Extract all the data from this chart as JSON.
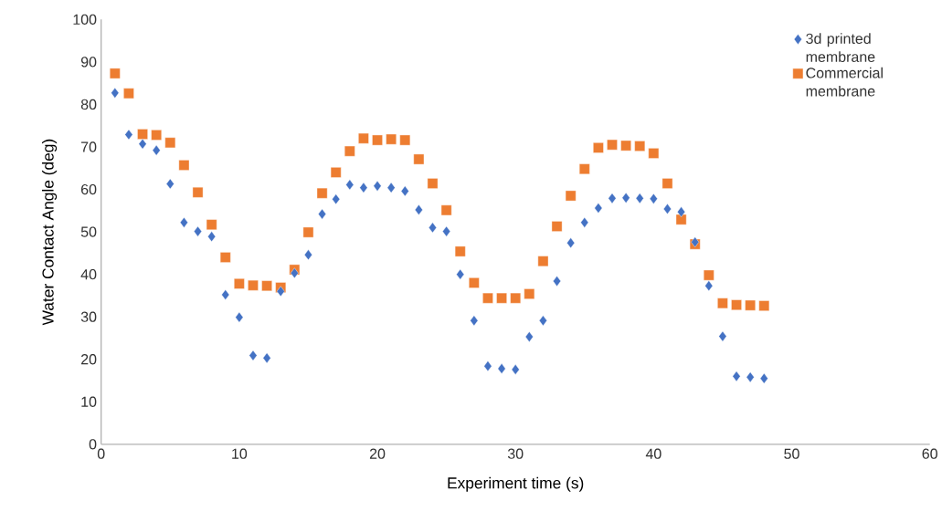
{
  "chart_data": {
    "type": "scatter",
    "xlabel": "Experiment time (s)",
    "ylabel": "Water Contact Angle (deg)",
    "x": [
      1,
      2,
      3,
      4,
      5,
      6,
      7,
      8,
      9,
      10,
      11,
      12,
      13,
      14,
      15,
      16,
      17,
      18,
      19,
      20,
      21,
      22,
      23,
      24,
      25,
      26,
      27,
      28,
      29,
      30,
      31,
      32,
      33,
      34,
      35,
      36,
      37,
      38,
      39,
      40,
      41,
      42,
      43,
      44,
      45,
      46,
      47,
      48
    ],
    "series": [
      {
        "name": "3d printed membrane",
        "color": "#4472c4",
        "marker": "diamond",
        "values": [
          82.7,
          72.9,
          70.7,
          69.2,
          61.3,
          52.2,
          50.1,
          48.9,
          35.2,
          29.9,
          20.9,
          20.3,
          36.0,
          40.3,
          44.6,
          54.2,
          57.7,
          61.1,
          60.4,
          60.8,
          60.4,
          59.6,
          55.2,
          51.0,
          50.1,
          40.0,
          29.1,
          18.4,
          17.8,
          17.6,
          25.3,
          29.1,
          38.4,
          47.4,
          52.2,
          55.6,
          57.9,
          58.0,
          57.9,
          57.8,
          55.4,
          54.7,
          47.6,
          37.3,
          25.4,
          16.0,
          15.8,
          15.5
        ]
      },
      {
        "name": "Commercial membrane",
        "color": "#ed7d31",
        "marker": "square",
        "values": [
          87.3,
          82.6,
          73.0,
          72.8,
          71.0,
          65.7,
          59.3,
          51.7,
          44.0,
          37.8,
          37.4,
          37.3,
          36.9,
          41.1,
          49.9,
          59.1,
          64.0,
          69.0,
          72.0,
          71.6,
          71.8,
          71.6,
          67.1,
          61.4,
          55.1,
          45.4,
          38.0,
          34.4,
          34.4,
          34.4,
          35.4,
          43.1,
          51.3,
          58.5,
          64.8,
          69.8,
          70.5,
          70.3,
          70.2,
          68.5,
          61.4,
          52.9,
          47.1,
          39.8,
          33.2,
          32.8,
          32.7,
          32.6
        ]
      }
    ],
    "xlim": [
      0,
      60
    ],
    "xticks": [
      0,
      10,
      20,
      30,
      40,
      50,
      60
    ],
    "ylim": [
      0,
      100
    ],
    "yticks": [
      0,
      10,
      20,
      30,
      40,
      50,
      60,
      70,
      80,
      90,
      100
    ],
    "grid": false,
    "legend": "top right"
  }
}
